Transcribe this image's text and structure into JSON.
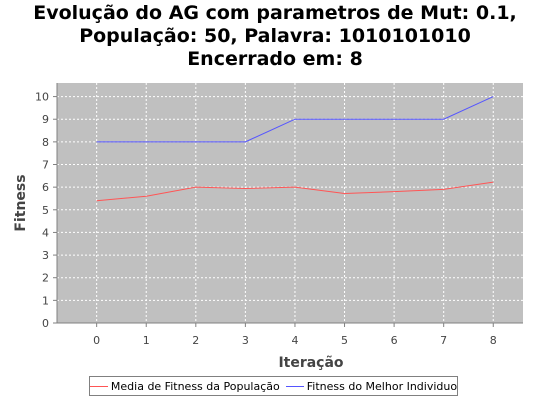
{
  "title_lines": [
    "Evolução do AG com parametros de Mut: 0.1,",
    "População: 50, Palavra: 1010101010",
    "Encerrado em: 8"
  ],
  "chart_data": {
    "type": "line",
    "xlabel": "Iteração",
    "ylabel": "Fitness",
    "x": [
      0,
      1,
      2,
      3,
      4,
      5,
      6,
      7,
      8
    ],
    "xlim": [
      -0.8,
      8.6
    ],
    "ylim": [
      0,
      10.6
    ],
    "xticks": [
      "0",
      "1",
      "2",
      "3",
      "4",
      "5",
      "6",
      "7",
      "8"
    ],
    "yticks": [
      "0",
      "1",
      "2",
      "3",
      "4",
      "5",
      "6",
      "7",
      "8",
      "9",
      "10"
    ],
    "grid": true,
    "legend_position": "bottom",
    "series": [
      {
        "name": "Media de Fitness da População",
        "color": "#ff5555",
        "values": [
          5.4,
          5.6,
          6.0,
          5.94,
          6.0,
          5.72,
          5.8,
          5.9,
          6.22
        ]
      },
      {
        "name": "Fitness do Melhor Individuo",
        "color": "#5555ff",
        "values": [
          8,
          8,
          8,
          8,
          9,
          9,
          9,
          9,
          10
        ]
      }
    ]
  }
}
